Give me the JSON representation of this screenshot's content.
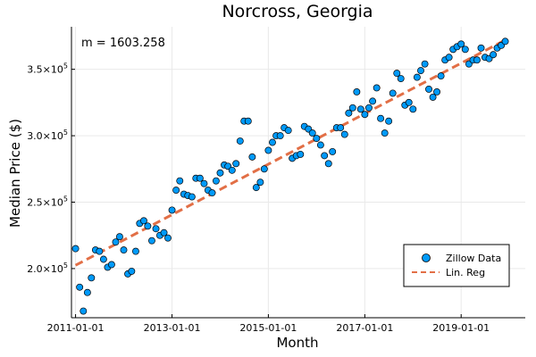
{
  "chart_data": {
    "type": "scatter",
    "title": "Norcross, Georgia",
    "xlabel": "Month",
    "ylabel": "Median Price ($)",
    "annotation": "m = 1603.258",
    "x_ticks": [
      "2011-01-01",
      "2013-01-01",
      "2015-01-01",
      "2017-01-01",
      "2019-01-01"
    ],
    "y_ticks": [
      {
        "value": 200000,
        "mantissa": "2.0×10",
        "exp": "5"
      },
      {
        "value": 250000,
        "mantissa": "2.5×10",
        "exp": "5"
      },
      {
        "value": 300000,
        "mantissa": "3.0×10",
        "exp": "5"
      },
      {
        "value": 350000,
        "mantissa": "3.5×10",
        "exp": "5"
      }
    ],
    "xlim": [
      "2010-12-01",
      "2020-05-01"
    ],
    "ylim": [
      163000,
      382000
    ],
    "grid": true,
    "legend_position": "bottom-right",
    "series": [
      {
        "name": "Zillow Data",
        "type": "scatter",
        "color": "#009AFA",
        "points": [
          [
            "2011-01-01",
            215000
          ],
          [
            "2011-02-01",
            186000
          ],
          [
            "2011-03-01",
            168000
          ],
          [
            "2011-04-01",
            182000
          ],
          [
            "2011-05-01",
            193000
          ],
          [
            "2011-06-01",
            214000
          ],
          [
            "2011-07-01",
            213000
          ],
          [
            "2011-08-01",
            207000
          ],
          [
            "2011-09-01",
            201000
          ],
          [
            "2011-10-01",
            203000
          ],
          [
            "2011-11-01",
            220000
          ],
          [
            "2011-12-01",
            224000
          ],
          [
            "2012-01-01",
            214000
          ],
          [
            "2012-02-01",
            196000
          ],
          [
            "2012-03-01",
            198000
          ],
          [
            "2012-04-01",
            213000
          ],
          [
            "2012-05-01",
            234000
          ],
          [
            "2012-06-01",
            236000
          ],
          [
            "2012-07-01",
            232000
          ],
          [
            "2012-08-01",
            221000
          ],
          [
            "2012-09-01",
            230000
          ],
          [
            "2012-10-01",
            225000
          ],
          [
            "2012-11-01",
            227000
          ],
          [
            "2012-12-01",
            223000
          ],
          [
            "2013-01-01",
            244000
          ],
          [
            "2013-02-01",
            259000
          ],
          [
            "2013-03-01",
            266000
          ],
          [
            "2013-04-01",
            256000
          ],
          [
            "2013-05-01",
            255000
          ],
          [
            "2013-06-01",
            254000
          ],
          [
            "2013-07-01",
            268000
          ],
          [
            "2013-08-01",
            268000
          ],
          [
            "2013-09-01",
            264000
          ],
          [
            "2013-10-01",
            259000
          ],
          [
            "2013-11-01",
            257000
          ],
          [
            "2013-12-01",
            266000
          ],
          [
            "2014-01-01",
            272000
          ],
          [
            "2014-02-01",
            278000
          ],
          [
            "2014-03-01",
            277000
          ],
          [
            "2014-04-01",
            274000
          ],
          [
            "2014-05-01",
            279000
          ],
          [
            "2014-06-01",
            296000
          ],
          [
            "2014-07-01",
            311000
          ],
          [
            "2014-08-01",
            311000
          ],
          [
            "2014-09-01",
            284000
          ],
          [
            "2014-10-01",
            261000
          ],
          [
            "2014-11-01",
            265000
          ],
          [
            "2014-12-01",
            275000
          ],
          [
            "2015-01-01",
            289000
          ],
          [
            "2015-02-01",
            295000
          ],
          [
            "2015-03-01",
            300000
          ],
          [
            "2015-04-01",
            300000
          ],
          [
            "2015-05-01",
            306000
          ],
          [
            "2015-06-01",
            304000
          ],
          [
            "2015-07-01",
            283000
          ],
          [
            "2015-08-01",
            285000
          ],
          [
            "2015-09-01",
            286000
          ],
          [
            "2015-10-01",
            307000
          ],
          [
            "2015-11-01",
            305000
          ],
          [
            "2015-12-01",
            302000
          ],
          [
            "2016-01-01",
            298000
          ],
          [
            "2016-02-01",
            293000
          ],
          [
            "2016-03-01",
            285000
          ],
          [
            "2016-04-01",
            279000
          ],
          [
            "2016-05-01",
            288000
          ],
          [
            "2016-06-01",
            306000
          ],
          [
            "2016-07-01",
            306000
          ],
          [
            "2016-08-01",
            301000
          ],
          [
            "2016-09-01",
            317000
          ],
          [
            "2016-10-01",
            321000
          ],
          [
            "2016-11-01",
            333000
          ],
          [
            "2016-12-01",
            320000
          ],
          [
            "2017-01-01",
            316000
          ],
          [
            "2017-02-01",
            321000
          ],
          [
            "2017-03-01",
            326000
          ],
          [
            "2017-04-01",
            336000
          ],
          [
            "2017-05-01",
            313000
          ],
          [
            "2017-06-01",
            302000
          ],
          [
            "2017-07-01",
            311000
          ],
          [
            "2017-08-01",
            332000
          ],
          [
            "2017-09-01",
            347000
          ],
          [
            "2017-10-01",
            343000
          ],
          [
            "2017-11-01",
            323000
          ],
          [
            "2017-12-01",
            325000
          ],
          [
            "2018-01-01",
            320000
          ],
          [
            "2018-02-01",
            344000
          ],
          [
            "2018-03-01",
            349000
          ],
          [
            "2018-04-01",
            354000
          ],
          [
            "2018-05-01",
            335000
          ],
          [
            "2018-06-01",
            329000
          ],
          [
            "2018-07-01",
            333000
          ],
          [
            "2018-08-01",
            345000
          ],
          [
            "2018-09-01",
            357000
          ],
          [
            "2018-10-01",
            359000
          ],
          [
            "2018-11-01",
            365000
          ],
          [
            "2018-12-01",
            367000
          ],
          [
            "2019-01-01",
            369000
          ],
          [
            "2019-02-01",
            365000
          ],
          [
            "2019-03-01",
            354000
          ],
          [
            "2019-04-01",
            357000
          ],
          [
            "2019-05-01",
            357000
          ],
          [
            "2019-06-01",
            366000
          ],
          [
            "2019-07-01",
            359000
          ],
          [
            "2019-08-01",
            358000
          ],
          [
            "2019-09-01",
            361000
          ],
          [
            "2019-10-01",
            366000
          ],
          [
            "2019-11-01",
            368000
          ],
          [
            "2019-12-01",
            371000
          ]
        ]
      },
      {
        "name": "Lin. Reg",
        "type": "line",
        "style": "dashed",
        "color": "#E26F46",
        "points": [
          [
            "2011-01-01",
            202500
          ],
          [
            "2019-12-01",
            372000
          ]
        ]
      }
    ]
  }
}
